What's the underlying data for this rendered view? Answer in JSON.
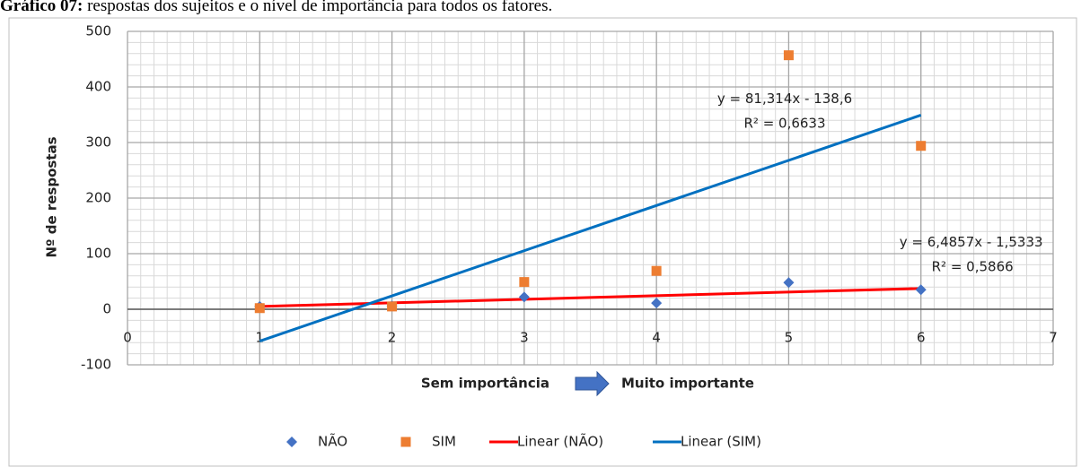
{
  "chart_data": {
    "type": "scatter",
    "title_prefix": "Gráfico 07:",
    "title": "respostas dos sujeitos e o nível de importância para todos os fatores.",
    "ylabel": "Nº de respostas",
    "xlabel_left": "Sem importância",
    "xlabel_right": "Muito importante",
    "xlim": [
      0,
      7
    ],
    "xticks": [
      0,
      1,
      2,
      3,
      4,
      5,
      6,
      7
    ],
    "ylim": [
      -100,
      500
    ],
    "yticks": [
      -100,
      0,
      100,
      200,
      300,
      400,
      500
    ],
    "grid": true,
    "minor_grid": {
      "x": 0.1,
      "y": 20
    },
    "legend": "bottom",
    "series": [
      {
        "name": "NÃO",
        "color": "#4472c4",
        "marker": "diamond",
        "x": [
          1,
          2,
          3,
          4,
          5,
          6
        ],
        "values": [
          5,
          6,
          22,
          11,
          48,
          35
        ]
      },
      {
        "name": "SIM",
        "color": "#ed7d31",
        "marker": "square",
        "x": [
          1,
          2,
          3,
          4,
          5,
          6
        ],
        "values": [
          2,
          5,
          49,
          69,
          457,
          294
        ]
      },
      {
        "name": "Linear (NÃO)",
        "color": "#ff0000",
        "marker": "line",
        "x": [
          1,
          6
        ],
        "values": [
          4.95,
          37.38
        ]
      },
      {
        "name": "Linear (SIM)",
        "color": "#0070c0",
        "marker": "line",
        "x": [
          1,
          6
        ],
        "values": [
          -57.29,
          349.28
        ]
      }
    ],
    "annotations": [
      {
        "text": "y = 81,314x - 138,6",
        "x": 4.97,
        "y": 378
      },
      {
        "text": "R² = 0,6633",
        "x": 4.97,
        "y": 334
      },
      {
        "text": "y = 6,4857x - 1,5333",
        "x": 6.38,
        "y": 120
      },
      {
        "text": "R² = 0,5866",
        "x": 6.39,
        "y": 76
      }
    ]
  }
}
